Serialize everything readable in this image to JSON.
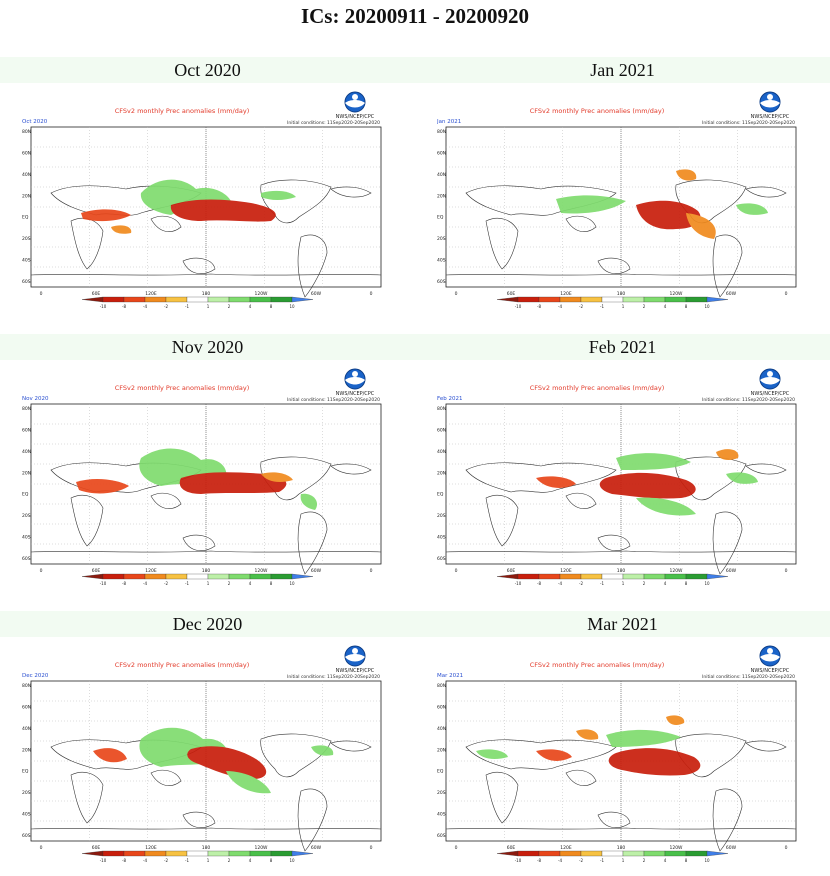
{
  "page_title": "ICs: 20200911 - 20200920",
  "map_header": {
    "title": "CFSv2 monthly Prec anomalies (mm/day)",
    "credit": "NWS/NCEP/CPC",
    "initial_conditions": "Initial conditions: 11Sep2020-20Sep2020",
    "logo": "noaa-logo"
  },
  "lat_labels": [
    "80N",
    "60N",
    "40N",
    "20N",
    "EQ",
    "20S",
    "40S",
    "60S"
  ],
  "lon_labels": [
    "0",
    "60E",
    "120E",
    "180",
    "120W",
    "60W",
    "0"
  ],
  "colorbar": {
    "colors": [
      "#8b1a0e",
      "#c81e0c",
      "#e8461a",
      "#f08a1e",
      "#f7c242",
      "#ffffff",
      "#bdf0a8",
      "#7fdc6e",
      "#49c04a",
      "#2a9c32",
      "#3f7ee8"
    ],
    "ticks": [
      "-10",
      "-8",
      "-4",
      "-2",
      "-1",
      "1",
      "2",
      "4",
      "8",
      "10"
    ]
  },
  "panels": [
    {
      "month": "Oct 2020",
      "corner": "Oct 2020"
    },
    {
      "month": "Jan 2021",
      "corner": "Jan 2021"
    },
    {
      "month": "Nov 2020",
      "corner": "Nov 2020"
    },
    {
      "month": "Feb 2021",
      "corner": "Feb 2021"
    },
    {
      "month": "Dec 2020",
      "corner": "Dec 2020"
    },
    {
      "month": "Mar 2021",
      "corner": "Mar 2021"
    }
  ]
}
